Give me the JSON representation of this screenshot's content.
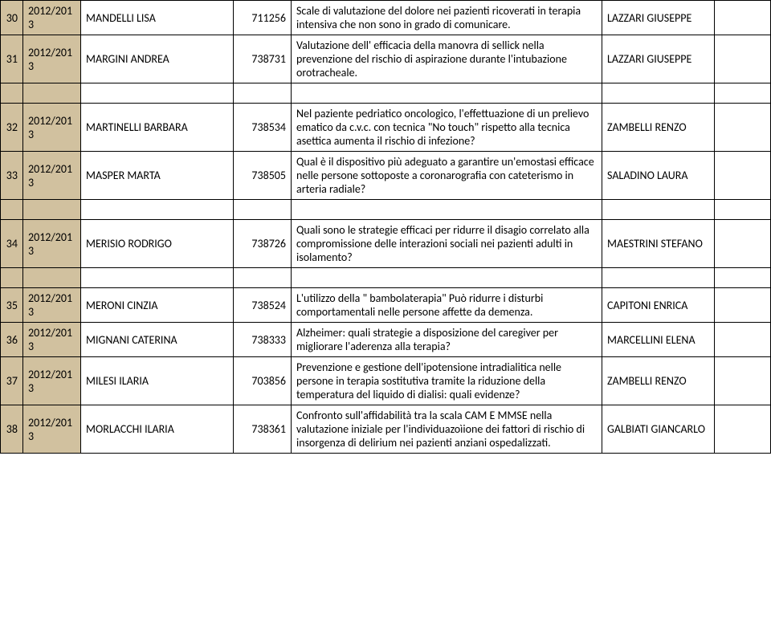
{
  "colors": {
    "shaded_bg": "#d1c19f",
    "border": "#000000",
    "page_bg": "#ffffff",
    "text": "#000000"
  },
  "font": {
    "family": "Calibri",
    "size_pt": 11
  },
  "columns": [
    "idx",
    "year",
    "name",
    "code",
    "description",
    "advisor",
    "extra"
  ],
  "rows": [
    {
      "idx": "30",
      "year": "2012/2013",
      "name": "MANDELLI   LISA",
      "code": "711256",
      "desc": "Scale di valutazione del dolore nei pazienti ricoverati in terapia intensiva che non sono in grado di comunicare.",
      "advisor": "LAZZARI GIUSEPPE",
      "extra": ""
    },
    {
      "idx": "31",
      "year": "2012/2013",
      "name": "MARGINI   ANDREA",
      "code": "738731",
      "desc": "Valutazione dell' efficacia della manovra di sellick nella prevenzione del rischio di aspirazione durante l'intubazione orotracheale.",
      "advisor": "LAZZARI GIUSEPPE",
      "extra": ""
    },
    {
      "idx": "32",
      "year": "2012/2013",
      "name": "MARTINELLI   BARBARA",
      "code": "738534",
      "desc": "Nel paziente pedriatico oncologico, l'effettuazione di un prelievo ematico da c.v.c. con tecnica \"No touch\" rispetto alla tecnica asettica  aumenta il rischio di infezione?",
      "advisor": "ZAMBELLI RENZO",
      "extra": ""
    },
    {
      "idx": "33",
      "year": "2012/2013",
      "name": "MASPER   MARTA",
      "code": "738505",
      "desc": "Qual è il dispositivo più adeguato a garantire un'emostasi efficace nelle persone sottoposte a coronarografia con cateterismo in arteria radiale?",
      "advisor": "SALADINO LAURA",
      "extra": ""
    },
    {
      "idx": "34",
      "year": "2012/2013",
      "name": "MERISIO   RODRIGO",
      "code": "738726",
      "desc": "Quali sono le strategie efficaci per ridurre il disagio correlato alla compromissione delle interazioni sociali nei pazienti adulti in isolamento?",
      "advisor": "MAESTRINI STEFANO",
      "extra": ""
    },
    {
      "idx": "35",
      "year": "2012/2013",
      "name": "MERONI   CINZIA",
      "code": "738524",
      "desc": "L'utilizzo della \" bambolaterapia\" Può ridurre i disturbi comportamentali nelle persone affette da demenza.",
      "advisor": "CAPITONI ENRICA",
      "extra": ""
    },
    {
      "idx": "36",
      "year": "2012/2013",
      "name": "MIGNANI   CATERINA",
      "code": "738333",
      "desc": "Alzheimer: quali strategie a disposizione del caregiver per migliorare l'aderenza alla terapia?",
      "advisor": "MARCELLINI ELENA",
      "extra": ""
    },
    {
      "idx": "37",
      "year": "2012/2013",
      "name": "MILESI   ILARIA",
      "code": "703856",
      "desc": "Prevenzione e gestione dell'ipotensione intradialitica nelle persone in terapia sostitutiva tramite la riduzione della temperatura del liquido di dialisi: quali evidenze?",
      "advisor": "ZAMBELLI RENZO",
      "extra": ""
    },
    {
      "idx": "38",
      "year": "2012/2013",
      "name": "MORLACCHI   ILARIA",
      "code": "738361",
      "desc": "Confronto sull'affidabilità tra la scala CAM  E MMSE nella valutazione iniziale per l'individuazoìione dei fattori di rischio di insorgenza di delirium nei pazienti anziani ospedalizzati.",
      "advisor": "GALBIATI GIANCARLO",
      "extra": ""
    }
  ],
  "group_breaks_after": [
    1,
    3,
    4
  ]
}
